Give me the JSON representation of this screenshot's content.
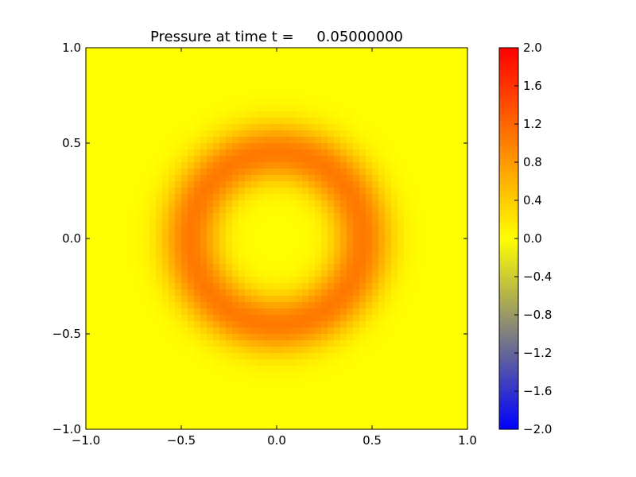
{
  "chart_data": {
    "type": "heatmap",
    "title": "Pressure at time t =     0.05000000",
    "xlabel": "",
    "ylabel": "",
    "xlim": [
      -1.0,
      1.0
    ],
    "ylim": [
      -1.0,
      1.0
    ],
    "x_ticks": [
      "−1.0",
      "−0.5",
      "0.0",
      "0.5",
      "1.0"
    ],
    "y_ticks": [
      "−1.0",
      "−0.5",
      "0.0",
      "0.5",
      "1.0"
    ],
    "grid": false,
    "grid_resolution": 60,
    "field": {
      "description": "Gaussian ring pulse in pressure",
      "ring_center": [
        0.0,
        0.0
      ],
      "ring_radius": 0.45,
      "ring_width": 0.155,
      "peak_value": 1.05,
      "background_value": 0.0
    },
    "colorbar": {
      "vmin": -2.0,
      "vmax": 2.0,
      "ticks": [
        "−2.0",
        "−1.6",
        "−1.2",
        "−0.8",
        "−0.4",
        "0.0",
        "0.4",
        "0.8",
        "1.2",
        "1.6",
        "2.0"
      ],
      "colors": [
        "#0000ff",
        "#ffff00",
        "#ff0000"
      ]
    }
  }
}
